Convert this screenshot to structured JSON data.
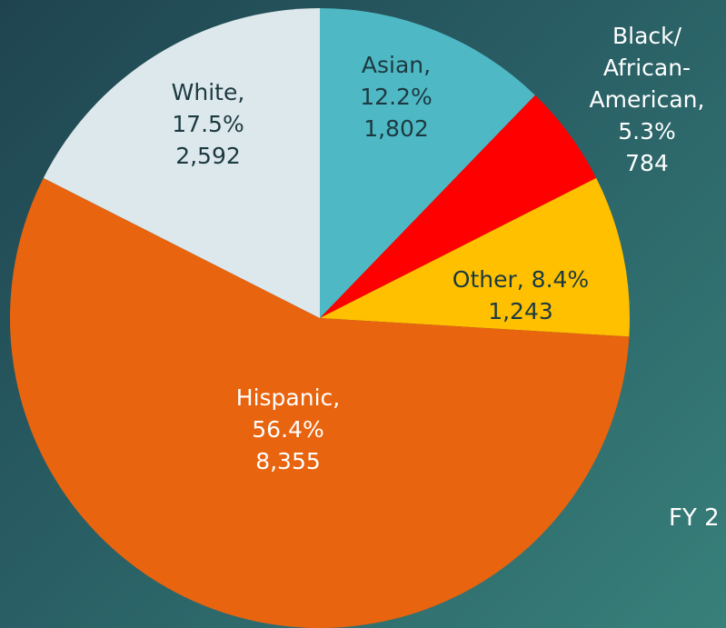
{
  "chart_data": {
    "type": "pie",
    "title": "",
    "start_angle_deg": 0,
    "direction": "clockwise",
    "slices": [
      {
        "name": "Asian",
        "label_lines": [
          "Asian,",
          "12.2%",
          "1,802"
        ],
        "percent": 12.2,
        "value": 1802,
        "color": "#4fb8c5"
      },
      {
        "name": "Black/African-American",
        "label_lines": [
          "Black/",
          "African-",
          "American,",
          "5.3%",
          "784"
        ],
        "percent": 5.3,
        "value": 784,
        "color": "#ff0000"
      },
      {
        "name": "Other",
        "label_lines": [
          "Other, 8.4%",
          "1,243"
        ],
        "percent": 8.4,
        "value": 1243,
        "color": "#ffc000"
      },
      {
        "name": "Hispanic",
        "label_lines": [
          "Hispanic,",
          "56.4%",
          "8,355"
        ],
        "percent": 56.4,
        "value": 8355,
        "color": "#e8640f"
      },
      {
        "name": "White",
        "label_lines": [
          "White,",
          "17.5%",
          "2,592"
        ],
        "percent": 17.5,
        "value": 2592,
        "color": "#dde8ec"
      }
    ]
  },
  "footer": {
    "fy_label": "FY 2"
  }
}
